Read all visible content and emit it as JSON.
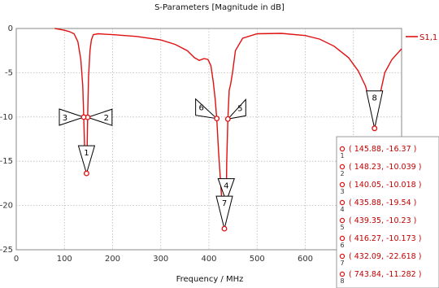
{
  "chart_data": {
    "type": "line",
    "title": "S-Parameters [Magnitude in dB]",
    "xlabel": "Frequency / MHz",
    "ylabel": "",
    "xlim": [
      0,
      800
    ],
    "ylim": [
      -25,
      0
    ],
    "x_ticks": [
      0,
      100,
      200,
      300,
      400,
      500,
      600
    ],
    "y_ticks": [
      0,
      -5,
      -10,
      -15,
      -20,
      -25
    ],
    "grid": true,
    "legend_position": "top-right",
    "series": [
      {
        "name": "S1,1",
        "color": "#e01010",
        "x": [
          80,
          90,
          100,
          110,
          120,
          128,
          134,
          138,
          140.05,
          142,
          144,
          145.88,
          147,
          148.23,
          150,
          153,
          156,
          160,
          170,
          200,
          250,
          300,
          330,
          355,
          370,
          380,
          390,
          398,
          404,
          409,
          413,
          416.27,
          420,
          425,
          428,
          432.09,
          435,
          435.88,
          437,
          439.35,
          442,
          445,
          449,
          455,
          470,
          500,
          550,
          600,
          630,
          660,
          690,
          710,
          725,
          735,
          740,
          743.84,
          748,
          755,
          765,
          780,
          795,
          805
        ],
        "y": [
          0,
          -0.1,
          -0.2,
          -0.35,
          -0.6,
          -1.5,
          -3.5,
          -6.5,
          -10.018,
          -13.5,
          -15.5,
          -16.37,
          -14,
          -10.039,
          -5.5,
          -2.5,
          -1.3,
          -0.7,
          -0.6,
          -0.7,
          -0.9,
          -1.3,
          -1.8,
          -2.5,
          -3.3,
          -3.6,
          -3.4,
          -3.5,
          -4.2,
          -6,
          -8,
          -10.173,
          -14,
          -18,
          -20.5,
          -22.618,
          -21,
          -19.54,
          -15,
          -10.23,
          -7,
          -6.3,
          -5,
          -2.5,
          -1.1,
          -0.6,
          -0.55,
          -0.8,
          -1.2,
          -2,
          -3.3,
          -4.8,
          -6.5,
          -8.5,
          -10,
          -11.282,
          -10,
          -7.5,
          -5,
          -3.5,
          -2.6,
          -2.3
        ]
      }
    ],
    "markers": [
      {
        "id": "1",
        "x": 145.88,
        "y": -16.37,
        "label": "( 145.88, -16.37 )"
      },
      {
        "id": "2",
        "x": 148.23,
        "y": -10.039,
        "label": "( 148.23, -10.039 )"
      },
      {
        "id": "3",
        "x": 140.05,
        "y": -10.018,
        "label": "( 140.05, -10.018 )"
      },
      {
        "id": "4",
        "x": 435.88,
        "y": -19.54,
        "label": "( 435.88, -19.54 )"
      },
      {
        "id": "5",
        "x": 439.35,
        "y": -10.23,
        "label": "( 439.35, -10.23 )"
      },
      {
        "id": "6",
        "x": 416.27,
        "y": -10.173,
        "label": "( 416.27, -10.173 )"
      },
      {
        "id": "7",
        "x": 432.09,
        "y": -22.618,
        "label": "( 432.09, -22.618 )"
      },
      {
        "id": "8",
        "x": 743.84,
        "y": -11.282,
        "label": "( 743.84, -11.282 )"
      }
    ]
  }
}
